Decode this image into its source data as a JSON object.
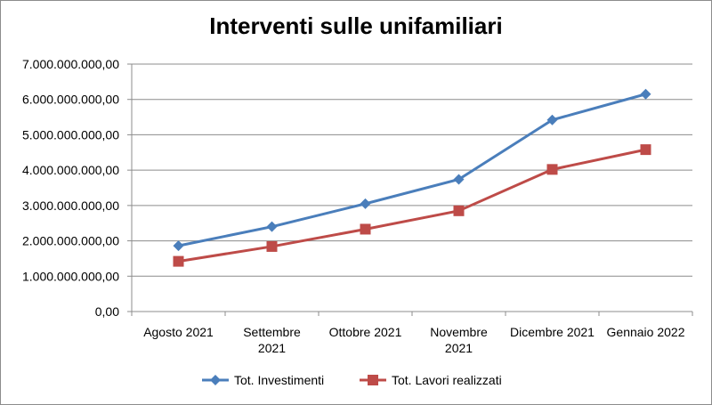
{
  "chart_data": {
    "type": "line",
    "title": "Interventi sulle unifamiliari",
    "categories": [
      [
        "Agosto 2021"
      ],
      [
        "Settembre",
        "2021"
      ],
      [
        "Ottobre 2021"
      ],
      [
        "Novembre",
        "2021"
      ],
      [
        "Dicembre 2021"
      ],
      [
        "Gennaio 2022"
      ]
    ],
    "ylim": [
      0,
      7000000000
    ],
    "yticks": [
      "0,00",
      "1.000.000.000,00",
      "2.000.000.000,00",
      "3.000.000.000,00",
      "4.000.000.000,00",
      "5.000.000.000,00",
      "6.000.000.000,00",
      "7.000.000.000,00"
    ],
    "grid": true,
    "legend": "bottom",
    "series": [
      {
        "name": "Tot. Investimenti",
        "color": "#4a7ebb",
        "marker": "diamond",
        "values": [
          1860000000,
          2400000000,
          3050000000,
          3740000000,
          5420000000,
          6150000000
        ]
      },
      {
        "name": "Tot. Lavori realizzati",
        "color": "#be4b48",
        "marker": "square",
        "values": [
          1420000000,
          1840000000,
          2330000000,
          2850000000,
          4020000000,
          4580000000
        ]
      }
    ]
  }
}
